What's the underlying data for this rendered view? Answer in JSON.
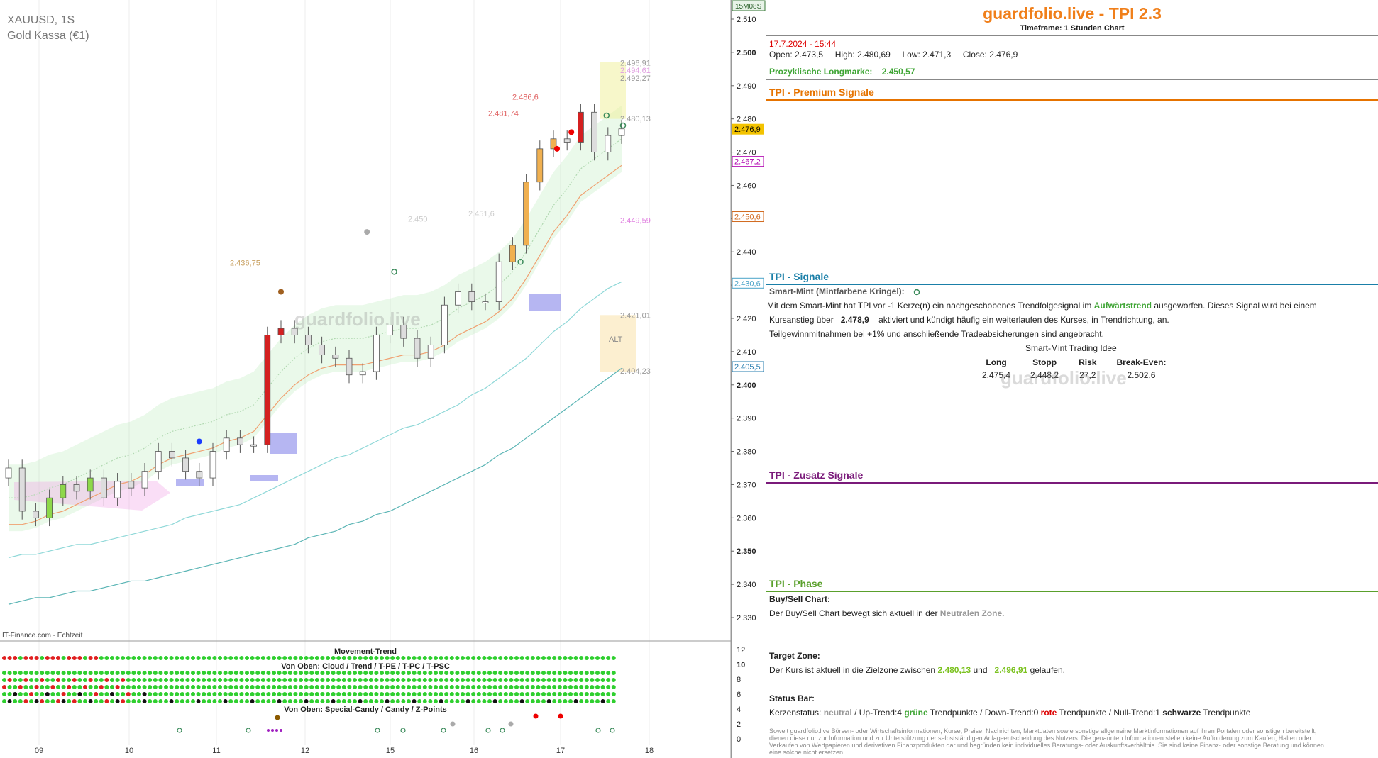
{
  "chart_header": {
    "symbol": "XAUUSD, 1S",
    "name": "Gold Kassa (€1)",
    "timeframe_badge": "15M08S",
    "source": "IT-Finance.com - Echtzeit",
    "watermark": "guardfolio.live"
  },
  "chart_data": {
    "type": "line",
    "title": "",
    "ylim": [
      2325,
      2515
    ],
    "y_ticks": [
      "2.510",
      "2.500",
      "2.490",
      "2.480",
      "2.470",
      "2.460",
      "2.450",
      "2.440",
      "2.430",
      "2.420",
      "2.410",
      "2.400",
      "2.390",
      "2.380",
      "2.370",
      "2.360",
      "2.350",
      "2.340",
      "2.330"
    ],
    "y_tick_values": [
      2510,
      2500,
      2490,
      2480,
      2470,
      2460,
      2450,
      2440,
      2430,
      2420,
      2410,
      2400,
      2390,
      2380,
      2370,
      2360,
      2350,
      2340,
      2330
    ],
    "x_ticks": [
      "09",
      "10",
      "11",
      "12",
      "15",
      "16",
      "17",
      "18"
    ],
    "price_tags": [
      {
        "label": "2.476,9",
        "value": 2476.9,
        "color": "#f3c300"
      },
      {
        "label": "2.467,2",
        "value": 2467.2,
        "color": "#b000b0"
      },
      {
        "label": "2.450,6",
        "value": 2450.6,
        "color": "#d2691e"
      },
      {
        "label": "2.430,6",
        "value": 2430.6,
        "color": "#4aa3c8"
      },
      {
        "label": "2.405,5",
        "value": 2405.5,
        "color": "#2a7fb0"
      }
    ],
    "annotations": [
      {
        "text": "2.496,91",
        "value": 2496.91,
        "color": "#999"
      },
      {
        "text": "2.494,61",
        "value": 2494.61,
        "color": "#e0a0e0"
      },
      {
        "text": "2.492,27",
        "value": 2492.27,
        "color": "#999"
      },
      {
        "text": "2.480,13",
        "value": 2480.13,
        "color": "#999"
      },
      {
        "text": "2.449,59",
        "value": 2449.59,
        "color": "#e080e0"
      },
      {
        "text": "2.421,01",
        "value": 2421.01,
        "color": "#999"
      },
      {
        "text": "2.404,23",
        "value": 2404.23,
        "color": "#999"
      },
      {
        "text": "2.486,6",
        "value": 2486.6,
        "color": "#e06060"
      },
      {
        "text": "2.481,74",
        "value": 2481.74,
        "color": "#e06060"
      },
      {
        "text": "2.450",
        "value": 2450,
        "color": "#ccc"
      },
      {
        "text": "2.451,6",
        "value": 2451.6,
        "color": "#ccc"
      },
      {
        "text": "2.436,75",
        "value": 2436.75,
        "color": "#c8a060"
      }
    ],
    "alt_label": "ALT",
    "series": [
      {
        "name": "close",
        "values": [
          2375,
          2362,
          2360,
          2366,
          2370,
          2368,
          2372,
          2366,
          2371,
          2369,
          2374,
          2380,
          2378,
          2374,
          2372,
          2380,
          2384,
          2382,
          2382,
          2415,
          2417,
          2415,
          2412,
          2409,
          2408,
          2403,
          2404,
          2415,
          2418,
          2414,
          2408,
          2412,
          2424,
          2428,
          2425,
          2425,
          2437,
          2442,
          2461,
          2471,
          2474,
          2473,
          2482,
          2470,
          2475,
          2477
        ]
      }
    ],
    "ema_fast": [
      2358,
      2358,
      2359,
      2361,
      2362,
      2364,
      2366,
      2368,
      2370,
      2371,
      2373,
      2376,
      2378,
      2379,
      2380,
      2381,
      2383,
      2384,
      2386,
      2391,
      2396,
      2400,
      2403,
      2405,
      2406,
      2406,
      2406,
      2407,
      2408,
      2409,
      2409,
      2410,
      2412,
      2415,
      2417,
      2419,
      2422,
      2426,
      2432,
      2439,
      2446,
      2451,
      2457,
      2460,
      2463,
      2466
    ],
    "ema_slow": [
      2348,
      2349,
      2349,
      2350,
      2351,
      2352,
      2352,
      2353,
      2354,
      2355,
      2356,
      2357,
      2358,
      2360,
      2361,
      2362,
      2363,
      2364,
      2366,
      2368,
      2370,
      2372,
      2374,
      2376,
      2378,
      2379,
      2381,
      2383,
      2385,
      2387,
      2388,
      2390,
      2392,
      2394,
      2397,
      2399,
      2402,
      2405,
      2408,
      2412,
      2416,
      2419,
      2423,
      2426,
      2429,
      2431
    ],
    "ema_long": [
      2334,
      2335,
      2336,
      2336,
      2337,
      2338,
      2338,
      2339,
      2340,
      2341,
      2341,
      2342,
      2343,
      2344,
      2345,
      2346,
      2347,
      2348,
      2349,
      2350,
      2351,
      2352,
      2354,
      2355,
      2356,
      2358,
      2359,
      2361,
      2362,
      2364,
      2366,
      2368,
      2370,
      2372,
      2374,
      2376,
      2379,
      2381,
      2384,
      2387,
      2390,
      2393,
      2396,
      2399,
      2402,
      2405
    ]
  },
  "indicator": {
    "movement_title": "Movement-Trend",
    "cloud_title": "Von Oben: Cloud / Trend / T-PE / T-PC / T-PSC",
    "special_title": "Von Oben: Special-Candy / Candy / Z-Points",
    "scale": [
      "12",
      "10",
      "8",
      "6",
      "4",
      "2",
      "0"
    ]
  },
  "panel": {
    "title": "guardfolio.live - TPI 2.3",
    "timeframe": "Timeframe: 1 Stunden Chart",
    "datetime": "17.7.2024 - 15:44",
    "open": "Open:  2.473,5",
    "high": "High:  2.480,69",
    "low": "Low:   2.471,3",
    "close": "Close:  2.476,9",
    "cyclic_label": "Prozyklische Longmarke:",
    "cyclic_value": "2.450,57",
    "premium_title": "TPI - Premium Signale",
    "signals_title": "TPI - Signale",
    "smart_mint_label": "Smart-Mint (Mintfarbene Kringel):",
    "smart_text_1a": "Mit dem Smart-Mint hat TPI vor -1  Kerze(n) ein nachgeschobenes Trendfolgesignal im ",
    "smart_text_1b": "Aufwärtstrend",
    "smart_text_1c": " ausgeworfen. Dieses Signal wird bei einem",
    "smart_text_2a": "Kursanstieg über ",
    "smart_text_2b": "2.478,9",
    "smart_text_2c": " aktiviert und kündigt häufig ein weiterlaufen des Kurses, in Trendrichtung, an.",
    "smart_text_3": "Teilgewinnmitnahmen bei +1% und anschließende Tradeabsicherungen sind angebracht.",
    "idea_title": "Smart-Mint Trading Idee",
    "idea_headers": [
      "Long",
      "Stopp",
      "Risk",
      "Break-Even:"
    ],
    "idea_values": [
      "2.475,4",
      "2.448,2",
      "27,2",
      "2.502,6"
    ],
    "extra_title": "TPI - Zusatz Signale",
    "phase_title": "TPI - Phase",
    "buysell_label": "Buy/Sell Chart:",
    "buysell_text_a": "Der Buy/Sell Chart bewegt sich aktuell in der ",
    "buysell_text_b": "Neutralen Zone.",
    "target_label": "Target Zone:",
    "target_text_a": "Der Kurs ist aktuell in die Zielzone zwischen ",
    "target_v1": "2.480,13",
    "target_and": " und ",
    "target_v2": "2.496,91",
    "target_text_b": " gelaufen.",
    "status_label": "Status Bar:",
    "status_a": "Kerzenstatus: ",
    "status_neutral": "neutral",
    "status_b": " / Up-Trend:4 ",
    "status_green": "grüne",
    "status_c": " Trendpunkte  / Down-Trend:0 ",
    "status_red": "rote",
    "status_d": " Trendpunkte / Null-Trend:1 ",
    "status_black": "schwarze",
    "status_e": " Trendpunkte",
    "disclaimer": "Soweit guardfolio.live Börsen- oder Wirtschaftsinformationen, Kurse, Preise, Nachrichten, Marktdaten sowie sonstige allgemeine Marktinformationen auf ihren Portalen oder sonstigen bereitstellt, dienen diese nur zur Information und zur Unterstützung der selbstständigen Anlageentscheidung des Nutzers. Die genannten Informationen stellen keine Aufforderung zum Kaufen, Halten oder Verkaufen von Wertpapieren und derivativen Finanzprodukten dar und begründen kein individuelles Beratungs- oder Auskunftsverhältnis. Sie sind keine Finanz- oder sonstige Beratung und können eine solche nicht ersetzen.",
    "watermark": "guardfolio.live"
  }
}
